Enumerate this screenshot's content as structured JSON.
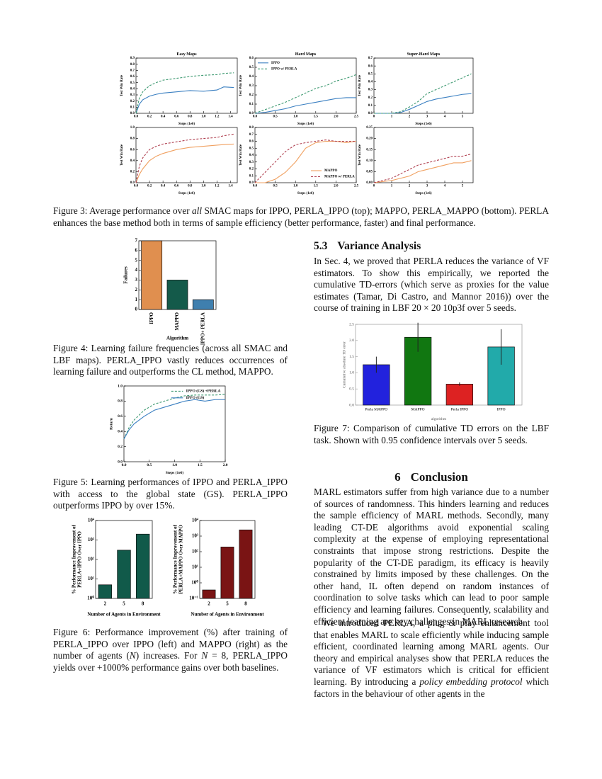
{
  "paper": {
    "fig3_caption": [
      "Figure 3: Average performance over ",
      {
        "em": "all"
      },
      " SMAC maps for IPPO, PERLA_IPPO (top); MAPPO, PERLA_MAPPO (bottom). PERLA enhances the base method both in terms of sample efficiency (better performance, faster) and final performance."
    ],
    "fig4_caption": "Figure 4: Learning failure frequencies (across all SMAC and LBF maps). PERLA_IPPO vastly reduces occurrences of learning failure and outperforms the CL method, MAPPO.",
    "fig5_caption": "Figure 5: Learning performances of IPPO and PERLA_IPPO with access to the global state (GS). PERLA_IPPO outperforms IPPO by over 15%.",
    "fig6_caption": [
      "Figure 6: Performance improvement (%) after training of PERLA_IPPO over IPPO (left) and MAPPO (right) as the number of agents (",
      {
        "em": "N"
      },
      ") increases. For ",
      {
        "em": "N"
      },
      " = 8, PERLA_IPPO yields over +1000% performance gains over both baselines."
    ],
    "section_53": {
      "number": "5.3",
      "title": "Variance Analysis"
    },
    "variance_paragraph": "In Sec. 4, we proved that PERLA reduces the variance of VF estimators. To show this empirically, we reported the cumulative TD-errors (which serve as proxies for the value estimates (Tamar, Di Castro, and Mannor 2016)) over the course of training in LBF 20 × 20 10p3f over 5 seeds.",
    "fig7_caption": "Figure 7: Comparison of cumulative TD errors on the LBF task. Shown with 0.95 confidence intervals over 5 seeds.",
    "section_6": {
      "number": "6",
      "title": "Conclusion"
    },
    "conclusion_paragraph_1": "MARL estimators suffer from high variance due to a number of sources of randomness. This hinders learning and reduces the sample efficiency of MARL methods. Secondly, many leading CT-DE algorithms avoid exponential scaling complexity at the expense of employing representational constraints that impose strong restrictions. Despite the popularity of the CT-DE paradigm, its efficacy is heavily constrained by limits imposed by these challenges. On the other hand, IL often depend on random instances of coordination to solve tasks which can lead to poor sample efficiency and learning failures. Consequently, scalability and efficient learning are key challenges in MARL research.",
    "conclusion_paragraph_2": [
      "We introduced PERLA, a plug & play enhancement tool that enables MARL to scale efficiently while inducing sample efficient, coordinated learning among MARL agents. Our theory and empirical analyses show that PERLA reduces the variance of VF estimators which is critical for efficient learning. By introducing a ",
      {
        "em": "policy embedding protocol"
      },
      " which factors in the behaviour of other agents in the"
    ]
  },
  "chart_data": [
    {
      "type": "line",
      "title": "Easy Maps",
      "x_label": "Steps (1e6)",
      "y_label": "Test Win Rate",
      "x": [
        0,
        0.05,
        0.1,
        0.2,
        0.3,
        0.4,
        0.6,
        0.8,
        1.0,
        1.2,
        1.3,
        1.45
      ],
      "series": [
        {
          "color": "#3a7fc1",
          "values": [
            0.0,
            0.15,
            0.22,
            0.28,
            0.31,
            0.33,
            0.35,
            0.37,
            0.36,
            0.38,
            0.43,
            0.42
          ]
        },
        {
          "color": "#3f9a72",
          "dash": true,
          "values": [
            0.0,
            0.25,
            0.35,
            0.45,
            0.5,
            0.54,
            0.57,
            0.6,
            0.62,
            0.63,
            0.65,
            0.66
          ]
        }
      ],
      "xlim": [
        0,
        1.5
      ],
      "xticks": [
        {
          "value": 0,
          "label": "0.0"
        },
        0.2,
        0.4,
        0.6,
        0.8,
        {
          "value": 1,
          "label": "1.0"
        },
        1.2,
        1.4
      ],
      "ylim": [
        0,
        0.9
      ],
      "yticks": [
        {
          "value": 0,
          "label": "0.0"
        },
        0.1,
        0.2,
        0.3,
        0.4,
        0.5,
        0.6,
        0.7,
        0.8,
        0.9
      ]
    },
    {
      "type": "line",
      "title": "Hard Maps",
      "x_label": "Steps (1e6)",
      "y_label": "Test Win Rate",
      "legend": "upper left",
      "x": [
        0,
        0.25,
        0.5,
        0.75,
        1.0,
        1.25,
        1.5,
        1.75,
        2.0,
        2.25,
        2.5
      ],
      "series": [
        {
          "name": "IPPO",
          "color": "#3a7fc1",
          "values": [
            0.0,
            0.01,
            0.03,
            0.05,
            0.08,
            0.1,
            0.12,
            0.14,
            0.16,
            0.17,
            0.17
          ]
        },
        {
          "name": "IPPO w/ PERLA",
          "color": "#3f9a72",
          "dash": true,
          "values": [
            0.0,
            0.04,
            0.08,
            0.12,
            0.17,
            0.22,
            0.27,
            0.3,
            0.35,
            0.38,
            0.42
          ]
        }
      ],
      "xlim": [
        0,
        2.5
      ],
      "xticks": [
        {
          "value": 0,
          "label": "0.0"
        },
        0.5,
        {
          "value": 1,
          "label": "1.0"
        },
        1.5,
        {
          "value": 2,
          "label": "2.0"
        },
        2.5
      ],
      "ylim": [
        0,
        0.6
      ],
      "yticks": [
        {
          "value": 0,
          "label": "0.0"
        },
        0.1,
        0.2,
        0.3,
        0.4,
        0.5,
        0.6
      ]
    },
    {
      "type": "line",
      "title": "Super-Hard Maps",
      "x_label": "Steps (1e6)",
      "y_label": "Test Win Rate",
      "x": [
        0,
        1,
        1.5,
        2,
        2.5,
        3,
        3.5,
        4,
        4.5,
        5,
        5.5
      ],
      "series": [
        {
          "color": "#3a7fc1",
          "values": [
            0,
            0,
            0.01,
            0.05,
            0.1,
            0.15,
            0.18,
            0.2,
            0.22,
            0.24,
            0.25
          ]
        },
        {
          "color": "#3f9a72",
          "dash": true,
          "values": [
            0,
            0,
            0.02,
            0.08,
            0.15,
            0.25,
            0.3,
            0.35,
            0.4,
            0.45,
            0.5
          ]
        }
      ],
      "xlim": [
        0,
        5.6
      ],
      "xticks": [
        0,
        1,
        2,
        3,
        4,
        5
      ],
      "ylim": [
        0,
        0.7
      ],
      "yticks": [
        {
          "value": 0,
          "label": "0.0"
        },
        0.1,
        0.2,
        0.3,
        0.4,
        0.5,
        0.6,
        0.7
      ]
    },
    {
      "type": "line",
      "x_label": "Steps (1e6)",
      "y_label": "Test Win Rate",
      "x": [
        0,
        0.05,
        0.1,
        0.2,
        0.3,
        0.4,
        0.6,
        0.8,
        1.0,
        1.2,
        1.3,
        1.45
      ],
      "series": [
        {
          "color": "#f0a060",
          "values": [
            0.0,
            0.15,
            0.25,
            0.4,
            0.48,
            0.53,
            0.6,
            0.64,
            0.66,
            0.68,
            0.69,
            0.7
          ]
        },
        {
          "color": "#b04050",
          "dash": true,
          "values": [
            0.0,
            0.3,
            0.45,
            0.6,
            0.66,
            0.7,
            0.74,
            0.78,
            0.8,
            0.82,
            0.85,
            0.88
          ]
        }
      ],
      "xlim": [
        0,
        1.5
      ],
      "xticks": [
        {
          "value": 0,
          "label": "0.0"
        },
        0.2,
        0.4,
        0.6,
        0.8,
        {
          "value": 1,
          "label": "1.0"
        },
        1.2,
        1.4
      ],
      "ylim": [
        0,
        1
      ],
      "yticks": [
        {
          "value": 0,
          "label": "0.0"
        },
        0.2,
        0.4,
        0.6,
        0.8,
        {
          "value": 1,
          "label": "1.0"
        }
      ]
    },
    {
      "type": "line",
      "x_label": "Steps (1e6)",
      "y_label": "Test Win Rate",
      "legend": "lower right",
      "x": [
        0,
        0.25,
        0.5,
        0.75,
        1.0,
        1.25,
        1.5,
        1.75,
        2.0,
        2.25,
        2.5
      ],
      "series": [
        {
          "name": "MAPPO",
          "color": "#f0a060",
          "values": [
            0.0,
            0.0,
            0.05,
            0.15,
            0.3,
            0.5,
            0.58,
            0.6,
            0.6,
            0.58,
            0.6
          ]
        },
        {
          "name": "MAPPO w/ PERLA",
          "color": "#b04050",
          "dash": true,
          "values": [
            0.0,
            0.15,
            0.3,
            0.45,
            0.55,
            0.58,
            0.6,
            0.62,
            0.6,
            0.6,
            0.6
          ]
        }
      ],
      "xlim": [
        0,
        2.5
      ],
      "xticks": [
        {
          "value": 0,
          "label": "0.0"
        },
        0.5,
        {
          "value": 1,
          "label": "1.0"
        },
        1.5,
        {
          "value": 2,
          "label": "2.0"
        },
        2.5
      ],
      "ylim": [
        0,
        0.8
      ],
      "yticks": [
        {
          "value": 0,
          "label": "0.0"
        },
        0.1,
        0.2,
        0.3,
        0.4,
        0.5,
        0.6,
        0.7,
        0.8
      ]
    },
    {
      "type": "line",
      "x_label": "Steps (1e6)",
      "y_label": "Test Win Rate",
      "x": [
        0,
        1,
        1.5,
        2,
        2.5,
        3,
        3.5,
        4,
        4.5,
        5,
        5.5
      ],
      "series": [
        {
          "color": "#f0a060",
          "values": [
            0,
            0.01,
            0.02,
            0.03,
            0.05,
            0.06,
            0.07,
            0.08,
            0.09,
            0.09,
            0.1
          ]
        },
        {
          "color": "#b04050",
          "dash": true,
          "values": [
            0,
            0.02,
            0.04,
            0.06,
            0.08,
            0.09,
            0.1,
            0.11,
            0.12,
            0.12,
            0.13
          ]
        }
      ],
      "xlim": [
        0,
        5.6
      ],
      "xticks": [
        0,
        1,
        2,
        3,
        4,
        5
      ],
      "ylim": [
        0,
        0.25
      ],
      "yticks": [
        {
          "value": 0,
          "label": "0.00"
        },
        0.05,
        {
          "value": 0.1,
          "label": "0.10"
        },
        0.15,
        {
          "value": 0.2,
          "label": "0.20"
        },
        0.25
      ]
    },
    {
      "type": "bar",
      "x_label": "Algorithm",
      "y_label": "Failures",
      "categories": [
        "IPPO",
        "MAPPO",
        "IPPO+ PERLA"
      ],
      "values": [
        7,
        3,
        1
      ],
      "colors": [
        "#e08f4f",
        "#145a4a",
        "#3f7fae"
      ],
      "ylim": [
        0,
        7
      ],
      "yticks": [
        0,
        1,
        2,
        3,
        4,
        5,
        6,
        7
      ]
    },
    {
      "type": "line",
      "x_label": "Steps (1e6)",
      "y_label": "Return",
      "legend": "upper right",
      "x": [
        0,
        0.1,
        0.2,
        0.4,
        0.6,
        0.8,
        1.0,
        1.2,
        1.4,
        1.6,
        1.8,
        2.0
      ],
      "series": [
        {
          "name": "IPPO (GS) +PERLA",
          "color": "#3f9a72",
          "dash": true,
          "values": [
            0.3,
            0.45,
            0.55,
            0.68,
            0.76,
            0.8,
            0.84,
            0.87,
            0.88,
            0.88,
            0.88,
            0.89
          ]
        },
        {
          "name": "IPPO (GS)",
          "color": "#3a7fc1",
          "values": [
            0.3,
            0.42,
            0.5,
            0.6,
            0.68,
            0.72,
            0.76,
            0.8,
            0.82,
            0.8,
            0.82,
            0.82
          ]
        }
      ],
      "xlim": [
        0,
        2
      ],
      "xticks": [
        {
          "value": 0,
          "label": "0.0"
        },
        0.5,
        {
          "value": 1,
          "label": "1.0"
        },
        1.5,
        {
          "value": 2,
          "label": "2.0"
        }
      ],
      "ylim": [
        0,
        1
      ],
      "yticks": [
        {
          "value": 0,
          "label": "0.0"
        },
        0.2,
        0.4,
        0.6,
        0.8,
        {
          "value": 1,
          "label": "1.0"
        }
      ]
    },
    {
      "type": "bar",
      "x_label": "Number of Agents in Environment",
      "y_label": [
        "% Performance Improvement of",
        "PERLA+IPPO Over IPPO"
      ],
      "categories": [
        "2",
        "5",
        "8"
      ],
      "values": [
        5,
        300,
        2000
      ],
      "color": "#115a4a",
      "y_scale": "log",
      "ylim": [
        1,
        10000
      ],
      "yticks": [
        {
          "value": 1,
          "label": "10⁰"
        },
        {
          "value": 10,
          "label": "10¹"
        },
        {
          "value": 100,
          "label": "10²"
        },
        {
          "value": 1000,
          "label": "10³"
        },
        {
          "value": 10000,
          "label": "10⁴"
        }
      ]
    },
    {
      "type": "bar",
      "x_label": "Number of Agents in Environment",
      "y_label": [
        "% Performance Improvement of",
        "PERLA+MAPPO Over MAPPO"
      ],
      "categories": [
        "2",
        "5",
        "8"
      ],
      "values": [
        0.35,
        200,
        2500
      ],
      "color": "#7a1414",
      "y_scale": "log",
      "ylim": [
        0.1,
        10000
      ],
      "yticks": [
        {
          "value": 0.1,
          "label": "10⁻¹"
        },
        {
          "value": 1,
          "label": "10⁰"
        },
        {
          "value": 10,
          "label": "10¹"
        },
        {
          "value": 100,
          "label": "10²"
        },
        {
          "value": 1000,
          "label": "10³"
        },
        {
          "value": 10000,
          "label": "10⁴"
        }
      ]
    },
    {
      "type": "bar",
      "x_label": "algorithm",
      "y_label": "Cumulative absolute TD error",
      "categories": [
        "Perla MAPPO",
        "MAPPO",
        "Perla IPPO",
        "IPPO"
      ],
      "values": [
        1.25,
        2.1,
        0.65,
        1.8
      ],
      "errors": [
        0.25,
        0.45,
        0.05,
        0.55
      ],
      "colors": [
        "#2222dd",
        "#117711",
        "#dd2222",
        "#22aaaa"
      ],
      "ylim": [
        0,
        2.5
      ],
      "yticks": [
        {
          "value": 0,
          "label": "0.0"
        },
        0.5,
        {
          "value": 1,
          "label": "1.0"
        },
        1.5,
        {
          "value": 2,
          "label": "2.0"
        },
        2.5
      ]
    }
  ]
}
